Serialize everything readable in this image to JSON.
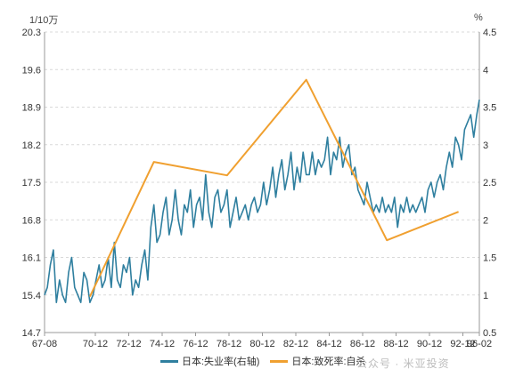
{
  "chart_data": {
    "type": "line",
    "title": "",
    "left_axis": {
      "unit": "1/10万",
      "ticks": [
        "14.7",
        "15.4",
        "16.1",
        "16.8",
        "17.5",
        "18.2",
        "18.9",
        "19.6",
        "20.3"
      ],
      "range": [
        14.7,
        20.3
      ]
    },
    "right_axis": {
      "unit": "%",
      "ticks": [
        "0.5",
        "1",
        "1.5",
        "2",
        "2.5",
        "3",
        "3.5",
        "4",
        "4.5"
      ],
      "range": [
        0.5,
        4.5
      ]
    },
    "x_ticks": [
      "67-08",
      "70-12",
      "72-12",
      "74-12",
      "76-12",
      "78-12",
      "80-12",
      "82-12",
      "84-12",
      "86-12",
      "88-12",
      "90-12",
      "92-12",
      "96-02"
    ],
    "grid": "horizontal dashed",
    "legend_position": "bottom",
    "series": [
      {
        "name": "日本:失业率(右轴)",
        "axis": "right",
        "color": "#2f7f9f",
        "x": [
          1967.62,
          1967.8,
          1968.0,
          1968.2,
          1968.4,
          1968.6,
          1968.8,
          1969.0,
          1969.2,
          1969.4,
          1969.6,
          1969.8,
          1970.0,
          1970.2,
          1970.4,
          1970.6,
          1970.8,
          1971.0,
          1971.2,
          1971.4,
          1971.6,
          1971.8,
          1972.0,
          1972.2,
          1972.4,
          1972.6,
          1972.8,
          1973.0,
          1973.2,
          1973.4,
          1973.6,
          1973.8,
          1974.0,
          1974.2,
          1974.4,
          1974.6,
          1974.8,
          1975.0,
          1975.2,
          1975.4,
          1975.6,
          1975.8,
          1976.0,
          1976.2,
          1976.4,
          1976.6,
          1976.8,
          1977.0,
          1977.2,
          1977.4,
          1977.6,
          1977.8,
          1978.0,
          1978.2,
          1978.4,
          1978.6,
          1978.8,
          1979.0,
          1979.2,
          1979.4,
          1979.6,
          1979.8,
          1980.0,
          1980.2,
          1980.4,
          1980.6,
          1980.8,
          1981.0,
          1981.2,
          1981.4,
          1981.6,
          1981.8,
          1982.0,
          1982.2,
          1982.4,
          1982.6,
          1982.8,
          1983.0,
          1983.2,
          1983.4,
          1983.6,
          1983.8,
          1984.0,
          1984.2,
          1984.4,
          1984.6,
          1984.8,
          1985.0,
          1985.2,
          1985.4,
          1985.6,
          1985.8,
          1986.0,
          1986.2,
          1986.4,
          1986.6,
          1986.8,
          1987.0,
          1987.2,
          1987.4,
          1987.6,
          1987.8,
          1988.0,
          1988.2,
          1988.4,
          1988.6,
          1988.8,
          1989.0,
          1989.2,
          1989.4,
          1989.6,
          1989.8,
          1990.0,
          1990.2,
          1990.4,
          1990.6,
          1990.8,
          1991.0,
          1991.2,
          1991.4,
          1991.6,
          1991.8,
          1992.0,
          1992.2,
          1992.4,
          1992.6,
          1992.8,
          1993.0,
          1993.2,
          1993.4,
          1993.6,
          1993.8,
          1994.0,
          1994.2,
          1994.4,
          1994.6,
          1994.8,
          1995.0,
          1995.2,
          1995.4,
          1995.6,
          1995.8,
          1996.0,
          1996.17
        ],
        "values": [
          1.0,
          1.1,
          1.4,
          1.6,
          0.9,
          1.2,
          1.0,
          0.9,
          1.3,
          1.5,
          1.1,
          1.0,
          0.9,
          1.3,
          1.2,
          0.9,
          1.0,
          1.2,
          1.4,
          1.1,
          1.2,
          1.5,
          1.1,
          1.7,
          1.2,
          1.1,
          1.4,
          1.3,
          1.5,
          1.0,
          1.2,
          1.1,
          1.4,
          1.6,
          1.2,
          1.9,
          2.2,
          1.7,
          1.8,
          2.1,
          2.3,
          1.8,
          2.0,
          2.4,
          2.0,
          1.8,
          2.2,
          2.1,
          2.4,
          1.9,
          2.2,
          2.3,
          2.0,
          2.6,
          2.1,
          1.9,
          2.3,
          2.4,
          2.1,
          2.2,
          2.4,
          1.9,
          2.1,
          2.3,
          2.0,
          2.1,
          2.2,
          2.0,
          2.2,
          2.3,
          2.1,
          2.2,
          2.5,
          2.2,
          2.4,
          2.7,
          2.3,
          2.6,
          2.8,
          2.4,
          2.6,
          2.9,
          2.4,
          2.7,
          2.5,
          2.9,
          2.6,
          2.6,
          2.9,
          2.6,
          2.8,
          2.7,
          2.8,
          3.1,
          2.6,
          2.9,
          2.8,
          3.1,
          2.7,
          2.9,
          3.0,
          2.6,
          2.7,
          2.4,
          2.3,
          2.2,
          2.5,
          2.3,
          2.1,
          2.2,
          2.1,
          2.3,
          2.1,
          2.2,
          2.1,
          2.3,
          1.9,
          2.2,
          2.1,
          2.3,
          2.1,
          2.2,
          2.1,
          2.2,
          2.3,
          2.1,
          2.4,
          2.5,
          2.3,
          2.5,
          2.6,
          2.4,
          2.7,
          2.9,
          2.7,
          3.1,
          3.0,
          2.8,
          3.2,
          3.3,
          3.4,
          3.1,
          3.4,
          3.6
        ]
      },
      {
        "name": "日本:致死率:自杀",
        "axis": "left",
        "color": "#f0a030",
        "x": [
          1970.6,
          1974.8,
          1979.6,
          1984.8,
          1990.1,
          1994.8
        ],
        "values": [
          15.37,
          17.88,
          17.63,
          19.41,
          16.42,
          16.95
        ]
      }
    ]
  },
  "watermark": "公众号 · 米亚投资"
}
